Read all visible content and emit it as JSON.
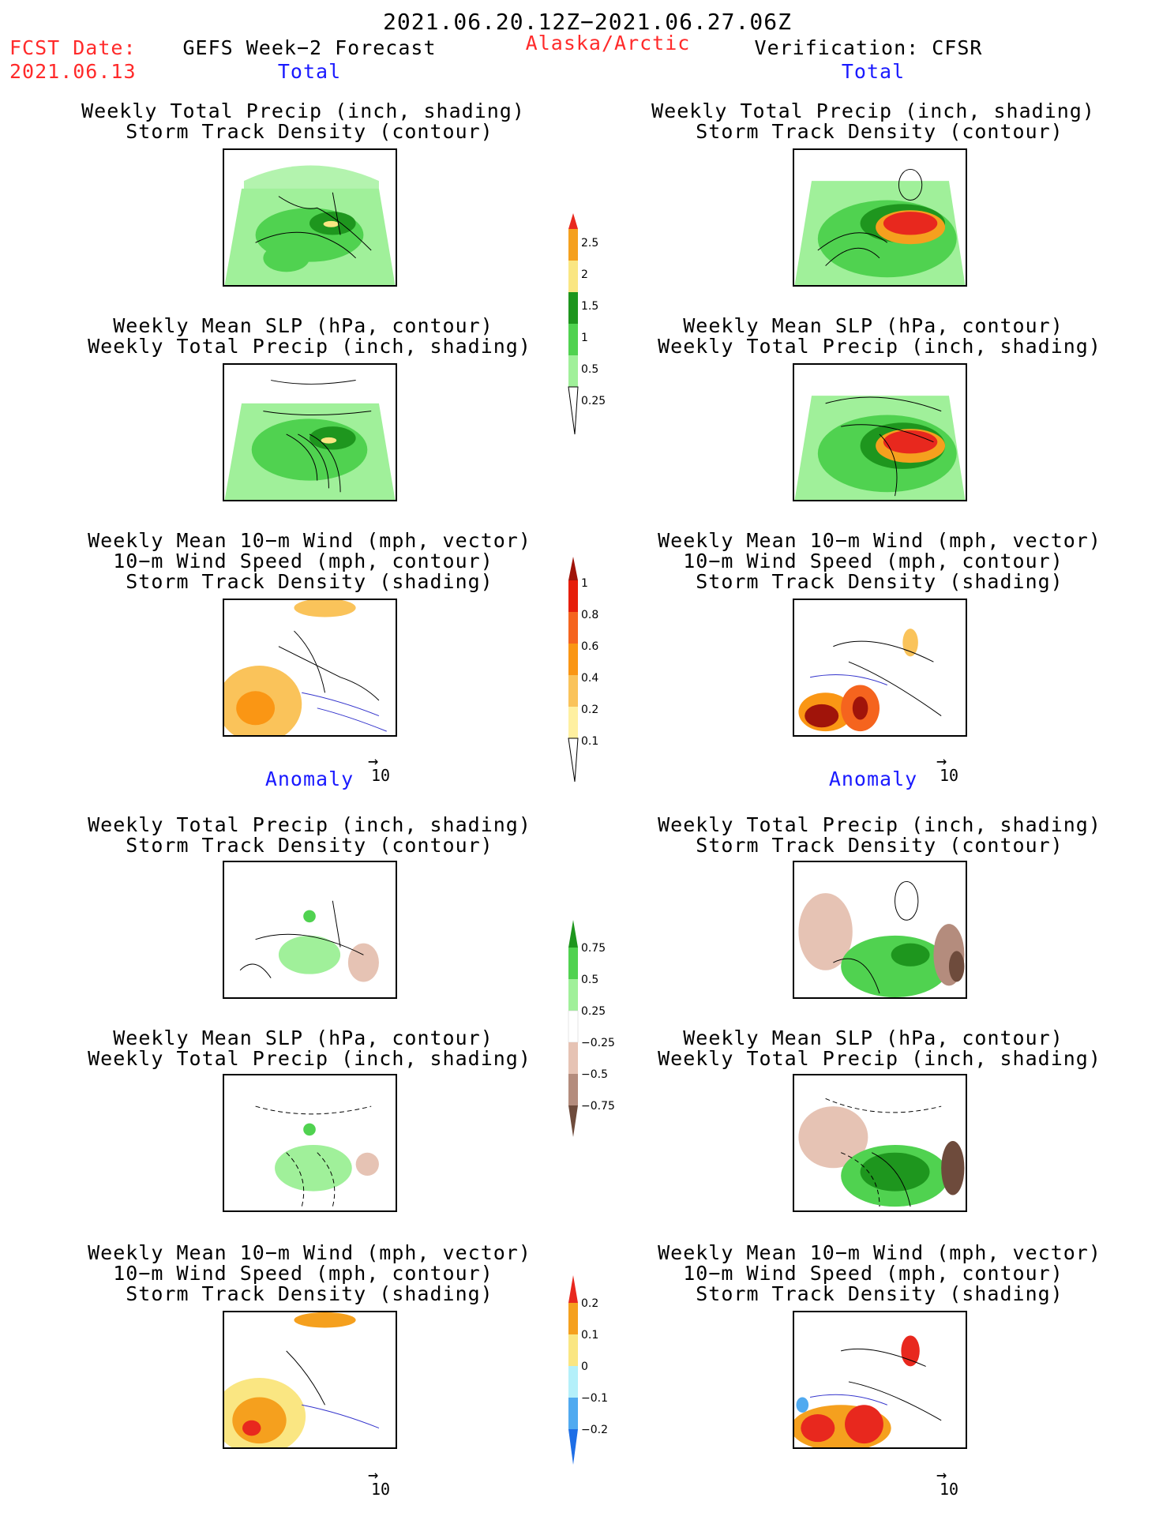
{
  "header": {
    "title": "2021.06.20.12Z−2021.06.27.06Z",
    "fcst_label": "FCST Date:",
    "fcst_date": "2021.06.13",
    "model": "GEFS Week−2 Forecast",
    "region": "Alaska/Arctic",
    "verification": "Verification: CFSR"
  },
  "sections": {
    "total": "Total",
    "anomaly": "Anomaly"
  },
  "labels": {
    "precip_storm": [
      "Weekly Total Precip (inch, shading)",
      "Storm Track Density (contour)"
    ],
    "slp_precip": [
      "Weekly Mean SLP (hPa, contour)",
      "Weekly Total Precip (inch, shading)"
    ],
    "wind_storm": [
      "Weekly Mean 10−m Wind (mph, vector)",
      "10−m Wind Speed (mph, contour)",
      "Storm Track Density (shading)"
    ]
  },
  "vector_ref": "10",
  "colorbars": [
    {
      "ticks": [
        "2.5",
        "2",
        "1.5",
        "1",
        "0.5",
        "0.25"
      ],
      "colors": [
        "#e8281e",
        "#f5a01e",
        "#fae682",
        "#1e961e",
        "#50d250",
        "#a0f09a",
        "#ffffff"
      ]
    },
    {
      "ticks": [
        "1",
        "0.8",
        "0.6",
        "0.4",
        "0.2",
        "0.1"
      ],
      "colors": [
        "#a0140a",
        "#e61e0a",
        "#f5641e",
        "#fa9614",
        "#fac35a",
        "#fff0a0",
        "#ffffff"
      ]
    },
    {
      "ticks": [
        "0.75",
        "0.5",
        "0.25",
        "−0.25",
        "−0.5",
        "−0.75"
      ],
      "colors": [
        "#1e961e",
        "#50d250",
        "#a0f09a",
        "#ffffff",
        "#e6c3b4",
        "#b48c7d",
        "#6e4b3c"
      ]
    },
    {
      "ticks": [
        "0.2",
        "0.1",
        "0",
        "−0.1",
        "−0.2"
      ],
      "colors": [
        "#e8281e",
        "#f5a01e",
        "#fae682",
        "#b4f0fa",
        "#50aaf0",
        "#1e6ee6"
      ]
    }
  ]
}
